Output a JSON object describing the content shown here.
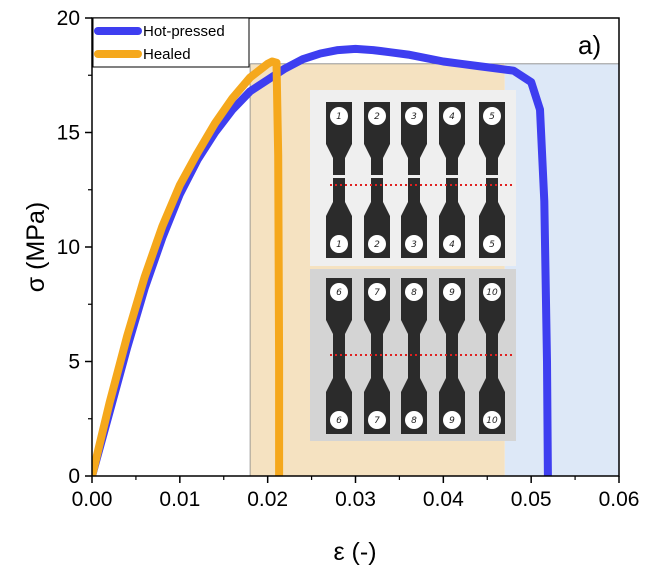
{
  "chart_data": {
    "type": "line",
    "panel_label": "a)",
    "xlabel": "ε (-)",
    "ylabel": "σ (MPa)",
    "xlim": [
      0,
      0.06
    ],
    "ylim": [
      0,
      20
    ],
    "x_ticks": [
      "0.00",
      "0.01",
      "0.02",
      "0.03",
      "0.04",
      "0.05",
      "0.06"
    ],
    "y_ticks": [
      "0",
      "5",
      "10",
      "15",
      "20"
    ],
    "grid": false,
    "legend_position": "top-left",
    "shaded_regions": [
      {
        "x_start": 0.018,
        "x_end": 0.047,
        "y_top": 18,
        "color": "#f5e2c1"
      },
      {
        "x_start": 0.047,
        "x_end": 0.06,
        "y_top": 18,
        "color": "#dde8f7"
      }
    ],
    "series": [
      {
        "name": "Hot-pressed",
        "color": "#3e3ef0",
        "x": [
          0,
          0.002,
          0.004,
          0.006,
          0.008,
          0.01,
          0.012,
          0.014,
          0.016,
          0.018,
          0.02,
          0.022,
          0.024,
          0.026,
          0.028,
          0.03,
          0.032,
          0.034,
          0.036,
          0.038,
          0.04,
          0.042,
          0.044,
          0.046,
          0.048,
          0.05,
          0.051,
          0.0515,
          0.0518,
          0.0519
        ],
        "y": [
          0,
          2.8,
          5.6,
          8.2,
          10.4,
          12.3,
          13.8,
          15.0,
          16.0,
          16.8,
          17.3,
          17.8,
          18.2,
          18.45,
          18.6,
          18.65,
          18.6,
          18.5,
          18.4,
          18.25,
          18.1,
          18.0,
          17.9,
          17.8,
          17.7,
          17.2,
          16.0,
          12.0,
          5.0,
          0
        ]
      },
      {
        "name": "Healed",
        "color": "#f5a81c",
        "x": [
          0,
          0.002,
          0.004,
          0.006,
          0.008,
          0.01,
          0.012,
          0.014,
          0.016,
          0.018,
          0.02,
          0.0205,
          0.021,
          0.0212,
          0.0213,
          0.0213
        ],
        "y": [
          0,
          3.2,
          6.1,
          8.7,
          10.9,
          12.7,
          14.1,
          15.4,
          16.5,
          17.4,
          18.0,
          18.1,
          18.05,
          14.0,
          5.0,
          0
        ]
      }
    ],
    "photo_top_labels": [
      "1",
      "2",
      "3",
      "4",
      "5"
    ],
    "photo_bottom_labels": [
      "6",
      "7",
      "8",
      "9",
      "10"
    ]
  }
}
